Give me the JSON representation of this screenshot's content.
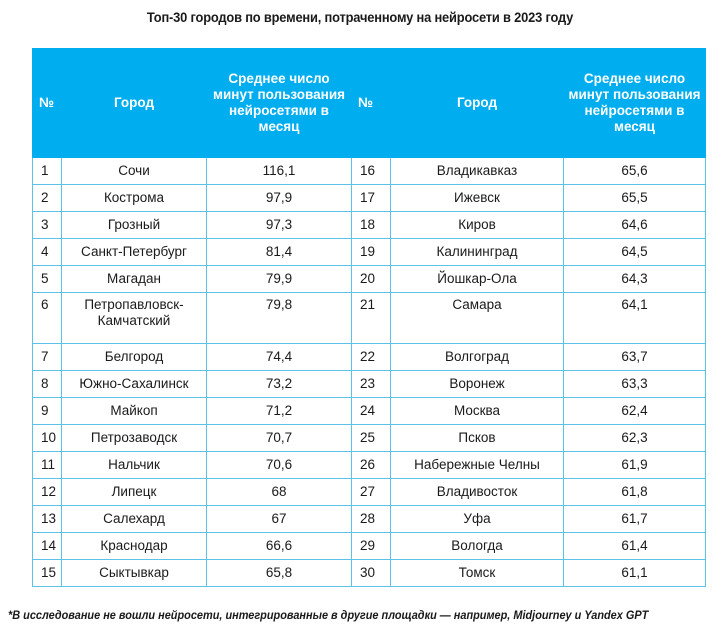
{
  "title": "Топ-30 городов по времени, потраченному на нейросети в 2023 году",
  "table": {
    "headers": [
      "№",
      "Город",
      "Среднее число минут пользования нейросетями в месяц",
      "№",
      "Город",
      "Среднее число минут пользования нейросетями в месяц"
    ],
    "rows": [
      {
        "left": {
          "rank": "1",
          "city": "Сочи",
          "minutes": "116,1"
        },
        "right": {
          "rank": "16",
          "city": "Владикавказ",
          "minutes": "65,6"
        }
      },
      {
        "left": {
          "rank": "2",
          "city": "Кострома",
          "minutes": "97,9"
        },
        "right": {
          "rank": "17",
          "city": "Ижевск",
          "minutes": "65,5"
        }
      },
      {
        "left": {
          "rank": "3",
          "city": "Грозный",
          "minutes": "97,3"
        },
        "right": {
          "rank": "18",
          "city": "Киров",
          "minutes": "64,6"
        }
      },
      {
        "left": {
          "rank": "4",
          "city": "Санкт-Петербург",
          "minutes": "81,4"
        },
        "right": {
          "rank": "19",
          "city": "Калининград",
          "minutes": "64,5"
        }
      },
      {
        "left": {
          "rank": "5",
          "city": "Магадан",
          "minutes": "79,9"
        },
        "right": {
          "rank": "20",
          "city": "Йошкар-Ола",
          "minutes": "64,3"
        }
      },
      {
        "left": {
          "rank": "6",
          "city": "Петропавловск-Камчатский",
          "minutes": "79,8"
        },
        "right": {
          "rank": "21",
          "city": "Самара",
          "minutes": "64,1"
        }
      },
      {
        "left": {
          "rank": "7",
          "city": "Белгород",
          "minutes": "74,4"
        },
        "right": {
          "rank": "22",
          "city": "Волгоград",
          "minutes": "63,7"
        }
      },
      {
        "left": {
          "rank": "8",
          "city": "Южно-Сахалинск",
          "minutes": "73,2"
        },
        "right": {
          "rank": "23",
          "city": "Воронеж",
          "minutes": "63,3"
        }
      },
      {
        "left": {
          "rank": "9",
          "city": "Майкоп",
          "minutes": "71,2"
        },
        "right": {
          "rank": "24",
          "city": "Москва",
          "minutes": "62,4"
        }
      },
      {
        "left": {
          "rank": "10",
          "city": "Петрозаводск",
          "minutes": "70,7"
        },
        "right": {
          "rank": "25",
          "city": "Псков",
          "minutes": "62,3"
        }
      },
      {
        "left": {
          "rank": "11",
          "city": "Нальчик",
          "minutes": "70,6"
        },
        "right": {
          "rank": "26",
          "city": "Набережные Челны",
          "minutes": "61,9"
        }
      },
      {
        "left": {
          "rank": "12",
          "city": "Липецк",
          "minutes": "68"
        },
        "right": {
          "rank": "27",
          "city": "Владивосток",
          "minutes": "61,8"
        }
      },
      {
        "left": {
          "rank": "13",
          "city": "Салехард",
          "minutes": "67"
        },
        "right": {
          "rank": "28",
          "city": "Уфа",
          "minutes": "61,7"
        }
      },
      {
        "left": {
          "rank": "14",
          "city": "Краснодар",
          "minutes": "66,6"
        },
        "right": {
          "rank": "29",
          "city": "Вологда",
          "minutes": "61,4"
        }
      },
      {
        "left": {
          "rank": "15",
          "city": "Сыктывкар",
          "minutes": "65,8"
        },
        "right": {
          "rank": "30",
          "city": "Томск",
          "minutes": "61,1"
        }
      }
    ]
  },
  "footnote": "*В исследование не вошли нейросети, интегрированные в другие площадки — например, Midjourney и Yandex GPT",
  "colors": {
    "header_bg": "#00aeef",
    "border": "#5bc2ea"
  }
}
